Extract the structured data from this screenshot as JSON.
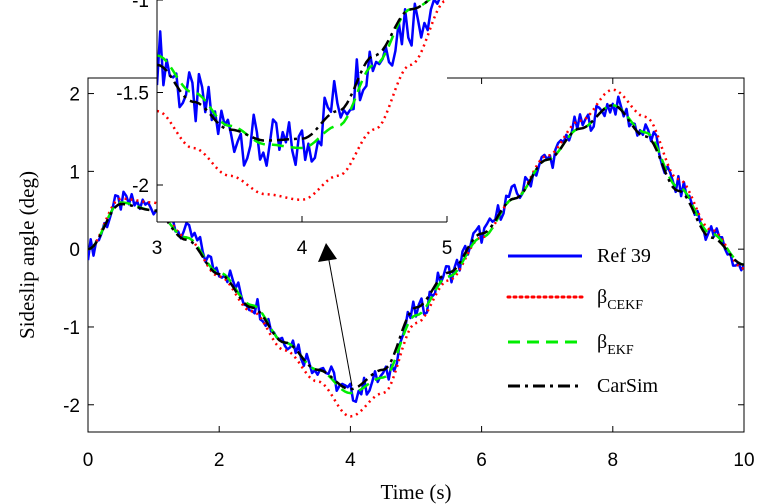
{
  "chart_data": [
    {
      "type": "line",
      "xlabel": "Time (s)",
      "ylabel": "Sideslip angle (deg)",
      "xlim": [
        0,
        10
      ],
      "ylim": [
        -2.35,
        2.2
      ],
      "xticks": [
        "0",
        "2",
        "4",
        "6",
        "8",
        "10"
      ],
      "yticks": [
        "-2",
        "-1",
        "0",
        "1",
        "2"
      ],
      "grid": false,
      "legend_position": "bottom-right",
      "x": [
        0,
        0.5,
        1,
        1.5,
        2,
        2.5,
        3,
        3.5,
        4,
        4.5,
        5,
        5.5,
        6,
        6.5,
        7,
        7.5,
        8,
        8.5,
        9,
        9.5,
        10
      ],
      "series": [
        {
          "name": "Ref 39",
          "color": "#0000FF",
          "dash": "solid",
          "noisy": true,
          "values": [
            0,
            0.6,
            0.55,
            0.2,
            -0.25,
            -0.7,
            -1.15,
            -1.5,
            -1.85,
            -1.65,
            -0.8,
            -0.3,
            0.2,
            0.7,
            1.15,
            1.6,
            1.85,
            1.5,
            0.8,
            0.2,
            -0.25
          ]
        },
        {
          "name": "CEKF",
          "color": "#FF0000",
          "dash": "dot",
          "values": [
            0,
            0.65,
            0.6,
            0.15,
            -0.35,
            -0.8,
            -1.3,
            -1.7,
            -2.15,
            -1.85,
            -0.95,
            -0.4,
            0.15,
            0.65,
            1.2,
            1.65,
            2.05,
            1.7,
            0.9,
            0.25,
            -0.25
          ]
        },
        {
          "name": "EKF",
          "color": "#00EE00",
          "dash": "dash",
          "values": [
            0,
            0.6,
            0.5,
            0.15,
            -0.3,
            -0.72,
            -1.2,
            -1.55,
            -1.85,
            -1.65,
            -0.85,
            -0.35,
            0.15,
            0.65,
            1.15,
            1.55,
            1.85,
            1.5,
            0.8,
            0.2,
            -0.2
          ]
        },
        {
          "name": "CarSim",
          "color": "#000000",
          "dash": "dashdot",
          "values": [
            0,
            0.58,
            0.5,
            0.12,
            -0.32,
            -0.75,
            -1.2,
            -1.55,
            -1.8,
            -1.55,
            -0.75,
            -0.3,
            0.2,
            0.65,
            1.15,
            1.55,
            1.85,
            1.45,
            0.75,
            0.15,
            -0.2
          ]
        }
      ],
      "legend": {
        "ref": "Ref 39",
        "cekf_base": "β",
        "cekf_sub": "CEKF",
        "ekf_base": "β",
        "ekf_sub": "EKF",
        "carsim": "CarSim"
      }
    },
    {
      "type": "line",
      "role": "inset",
      "xlim": [
        3,
        5
      ],
      "ylim": [
        -2.2,
        -1
      ],
      "xticks": [
        "3",
        "4",
        "5"
      ],
      "yticks": [
        "-1",
        "-1.5",
        "-2"
      ],
      "x": [
        3,
        3.25,
        3.5,
        3.75,
        4,
        4.25,
        4.5,
        4.75,
        5
      ],
      "series": [
        {
          "name": "Ref 39",
          "color": "#0000FF",
          "dash": "solid",
          "noisy": true,
          "values": [
            -1.3,
            -1.55,
            -1.7,
            -1.8,
            -1.8,
            -1.55,
            -1.3,
            -1.1,
            -0.95
          ]
        },
        {
          "name": "CEKF",
          "color": "#FF0000",
          "dash": "dot",
          "values": [
            -1.6,
            -1.8,
            -1.95,
            -2.05,
            -2.08,
            -1.95,
            -1.7,
            -1.35,
            -1.0
          ]
        },
        {
          "name": "EKF",
          "color": "#00EE00",
          "dash": "dash",
          "values": [
            -1.3,
            -1.5,
            -1.68,
            -1.78,
            -1.8,
            -1.68,
            -1.35,
            -1.05,
            -0.95
          ]
        },
        {
          "name": "CarSim",
          "color": "#000000",
          "dash": "dashdot",
          "values": [
            -1.35,
            -1.55,
            -1.7,
            -1.76,
            -1.75,
            -1.6,
            -1.3,
            -1.05,
            -0.95
          ]
        }
      ]
    }
  ]
}
